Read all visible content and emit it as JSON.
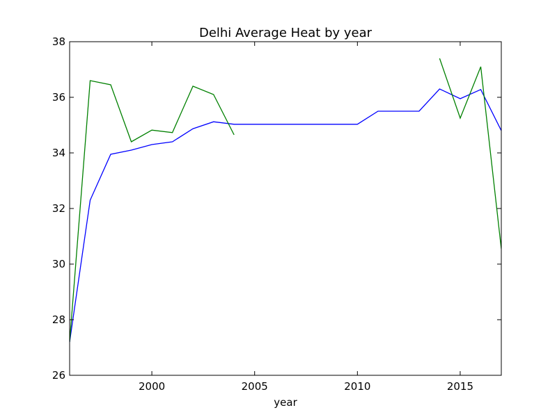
{
  "chart_data": {
    "type": "line",
    "title": "Delhi Average Heat by year",
    "xlabel": "year",
    "ylabel": "",
    "xlim": [
      1996,
      2017
    ],
    "ylim": [
      26,
      38
    ],
    "xticks": [
      2000,
      2005,
      2010,
      2015
    ],
    "yticks": [
      26,
      28,
      30,
      32,
      34,
      36,
      38
    ],
    "grid": false,
    "legend": "none",
    "series": [
      {
        "color": "#0000ff",
        "points": [
          [
            1996,
            27.2
          ],
          [
            1997,
            32.3
          ],
          [
            1998,
            33.95
          ],
          [
            1999,
            34.1
          ],
          [
            2000,
            34.3
          ],
          [
            2001,
            34.4
          ],
          [
            2002,
            34.87
          ],
          [
            2003,
            35.12
          ],
          [
            2004,
            35.03
          ],
          [
            2005,
            35.03
          ],
          [
            2006,
            35.03
          ],
          [
            2007,
            35.03
          ],
          [
            2008,
            35.03
          ],
          [
            2009,
            35.03
          ],
          [
            2010,
            35.03
          ],
          [
            2011,
            35.5
          ],
          [
            2012,
            35.5
          ],
          [
            2013,
            35.5
          ],
          [
            2014,
            36.3
          ],
          [
            2015,
            35.95
          ],
          [
            2016,
            36.28
          ],
          [
            2017,
            34.8
          ]
        ]
      },
      {
        "color": "#008000",
        "points": [
          [
            1996,
            27.2
          ],
          [
            1997,
            36.6
          ],
          [
            1998,
            36.45
          ],
          [
            1999,
            34.4
          ],
          [
            2000,
            34.82
          ],
          [
            2001,
            34.73
          ],
          [
            2002,
            36.4
          ],
          [
            2003,
            36.1
          ],
          [
            2004,
            34.65
          ],
          [
            2005,
            null
          ],
          [
            2006,
            null
          ],
          [
            2007,
            null
          ],
          [
            2008,
            null
          ],
          [
            2009,
            null
          ],
          [
            2010,
            null
          ],
          [
            2011,
            null
          ],
          [
            2012,
            null
          ],
          [
            2013,
            null
          ],
          [
            2014,
            37.4
          ],
          [
            2015,
            35.25
          ],
          [
            2016,
            37.1
          ],
          [
            2017,
            30.55
          ]
        ]
      }
    ]
  }
}
